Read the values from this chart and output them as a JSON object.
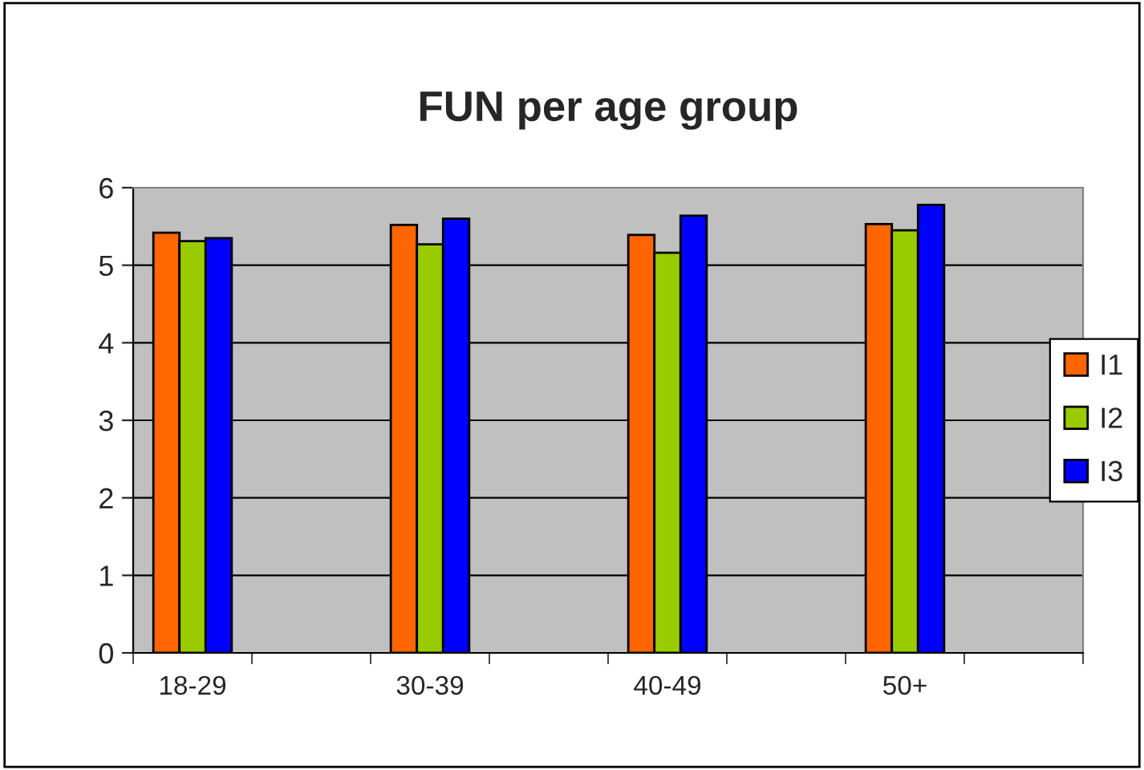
{
  "chart_data": {
    "type": "bar",
    "title": "FUN per age group",
    "categories": [
      "18-29",
      null,
      "30-39",
      null,
      "40-49",
      null,
      "50+",
      null
    ],
    "series": [
      {
        "name": "I1",
        "color": "#ff6600",
        "values": [
          5.42,
          null,
          5.52,
          null,
          5.39,
          null,
          5.53,
          null
        ]
      },
      {
        "name": "I2",
        "color": "#99cc00",
        "values": [
          5.31,
          null,
          5.27,
          null,
          5.16,
          null,
          5.45,
          null
        ]
      },
      {
        "name": "I3",
        "color": "#0000ff",
        "values": [
          5.35,
          null,
          5.6,
          null,
          5.64,
          null,
          5.78,
          null
        ]
      }
    ],
    "ylim": [
      0,
      6
    ],
    "yticks": [
      0,
      1,
      2,
      3,
      4,
      5,
      6
    ],
    "grid": "y",
    "legend": "right"
  }
}
